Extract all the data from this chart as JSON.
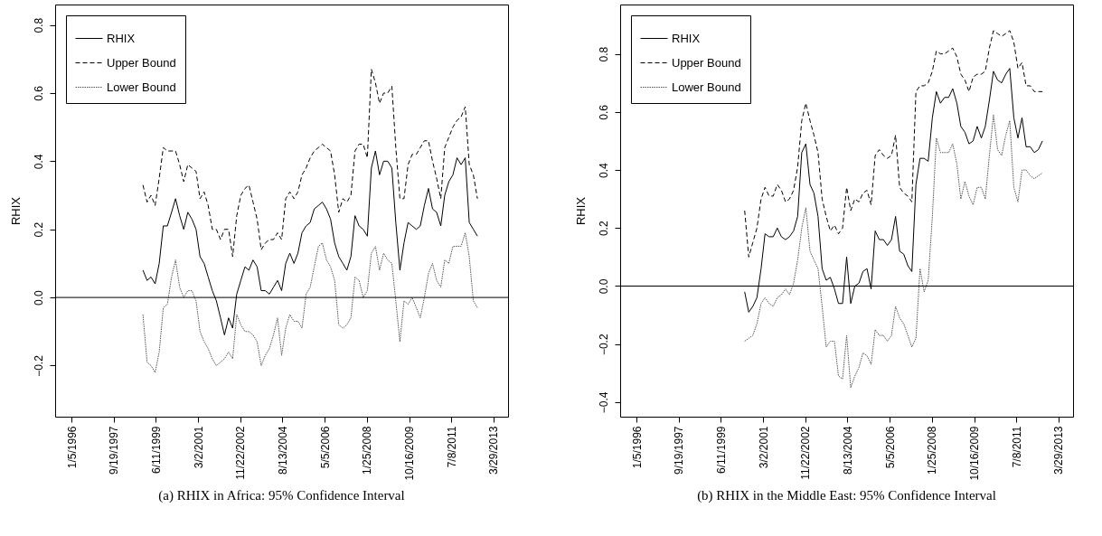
{
  "chart_data": [
    {
      "type": "line",
      "title": "(a) RHIX in Africa: 95% Confidence Interval",
      "ylabel": "RHIX",
      "legend": "top left",
      "x": [
        "1998-12",
        "1999-02",
        "1999-04",
        "1999-06",
        "1999-08",
        "1999-10",
        "1999-12",
        "2000-02",
        "2000-04",
        "2000-06",
        "2000-08",
        "2000-10",
        "2000-12",
        "2001-02",
        "2001-04",
        "2001-06",
        "2001-08",
        "2001-10",
        "2001-12",
        "2002-02",
        "2002-04",
        "2002-06",
        "2002-08",
        "2002-10",
        "2002-12",
        "2003-02",
        "2003-04",
        "2003-06",
        "2003-08",
        "2003-10",
        "2003-12",
        "2004-02",
        "2004-04",
        "2004-06",
        "2004-08",
        "2004-10",
        "2004-12",
        "2005-02",
        "2005-04",
        "2005-06",
        "2005-08",
        "2005-10",
        "2005-12",
        "2006-02",
        "2006-04",
        "2006-06",
        "2006-08",
        "2006-10",
        "2006-12",
        "2007-02",
        "2007-04",
        "2007-06",
        "2007-08",
        "2007-10",
        "2007-12",
        "2008-02",
        "2008-04",
        "2008-06",
        "2008-08",
        "2008-10",
        "2008-12",
        "2009-02",
        "2009-04",
        "2009-06",
        "2009-08",
        "2009-10",
        "2009-12",
        "2010-02",
        "2010-04",
        "2010-06",
        "2010-08",
        "2010-10",
        "2010-12",
        "2011-02",
        "2011-04",
        "2011-06",
        "2011-08",
        "2011-10",
        "2011-12",
        "2012-02",
        "2012-04",
        "2012-06",
        "2012-08"
      ],
      "series": [
        {
          "name": "RHIX",
          "color": "#000000",
          "line_style": "solid",
          "values": [
            0.08,
            0.05,
            0.06,
            0.04,
            0.1,
            0.21,
            0.21,
            0.25,
            0.29,
            0.24,
            0.2,
            0.25,
            0.23,
            0.2,
            0.12,
            0.1,
            0.06,
            0.02,
            -0.01,
            -0.06,
            -0.11,
            -0.06,
            -0.09,
            0.01,
            0.05,
            0.09,
            0.08,
            0.11,
            0.09,
            0.02,
            0.02,
            0.01,
            0.03,
            0.05,
            0.02,
            0.1,
            0.13,
            0.1,
            0.13,
            0.19,
            0.21,
            0.22,
            0.26,
            0.27,
            0.28,
            0.26,
            0.23,
            0.16,
            0.12,
            0.1,
            0.08,
            0.12,
            0.24,
            0.21,
            0.2,
            0.18,
            0.38,
            0.43,
            0.36,
            0.4,
            0.4,
            0.38,
            0.22,
            0.08,
            0.16,
            0.22,
            0.21,
            0.2,
            0.21,
            0.27,
            0.32,
            0.26,
            0.25,
            0.21,
            0.3,
            0.34,
            0.36,
            0.41,
            0.39,
            0.41,
            0.22,
            0.2,
            0.18
          ]
        },
        {
          "name": "Upper Bound",
          "color": "#000000",
          "line_style": "dashed",
          "values": [
            0.33,
            0.28,
            0.3,
            0.27,
            0.35,
            0.44,
            0.43,
            0.43,
            0.43,
            0.39,
            0.34,
            0.39,
            0.38,
            0.37,
            0.29,
            0.31,
            0.27,
            0.2,
            0.2,
            0.17,
            0.2,
            0.2,
            0.12,
            0.24,
            0.3,
            0.32,
            0.33,
            0.28,
            0.23,
            0.14,
            0.16,
            0.17,
            0.17,
            0.19,
            0.17,
            0.29,
            0.31,
            0.29,
            0.31,
            0.36,
            0.38,
            0.41,
            0.43,
            0.44,
            0.45,
            0.44,
            0.43,
            0.36,
            0.25,
            0.29,
            0.28,
            0.3,
            0.43,
            0.45,
            0.45,
            0.41,
            0.67,
            0.63,
            0.57,
            0.6,
            0.6,
            0.62,
            0.44,
            0.29,
            0.29,
            0.39,
            0.42,
            0.42,
            0.44,
            0.46,
            0.46,
            0.4,
            0.35,
            0.29,
            0.44,
            0.47,
            0.5,
            0.52,
            0.53,
            0.56,
            0.39,
            0.36,
            0.29
          ]
        },
        {
          "name": "Lower Bound",
          "color": "#555555",
          "line_style": "dotted",
          "values": [
            -0.05,
            -0.19,
            -0.2,
            -0.22,
            -0.16,
            -0.03,
            -0.02,
            0.06,
            0.11,
            0.03,
            0.0,
            0.02,
            0.02,
            -0.01,
            -0.1,
            -0.13,
            -0.15,
            -0.18,
            -0.2,
            -0.19,
            -0.18,
            -0.16,
            -0.18,
            -0.05,
            -0.08,
            -0.1,
            -0.1,
            -0.11,
            -0.13,
            -0.2,
            -0.17,
            -0.15,
            -0.11,
            -0.06,
            -0.17,
            -0.09,
            -0.05,
            -0.07,
            -0.07,
            -0.09,
            0.01,
            0.03,
            0.09,
            0.15,
            0.16,
            0.11,
            0.09,
            0.05,
            -0.08,
            -0.09,
            -0.08,
            -0.06,
            0.06,
            0.05,
            0.0,
            0.02,
            0.13,
            0.15,
            0.08,
            0.13,
            0.11,
            0.1,
            -0.01,
            -0.13,
            -0.01,
            -0.02,
            0.0,
            -0.03,
            -0.06,
            0.0,
            0.07,
            0.1,
            0.05,
            0.03,
            0.11,
            0.1,
            0.15,
            0.15,
            0.15,
            0.19,
            0.12,
            -0.01,
            -0.03
          ]
        }
      ],
      "xlim": [
        "1995-05",
        "2013-11"
      ],
      "xticks": [
        {
          "value": "1996-01-05",
          "label": "1/5/1996"
        },
        {
          "value": "1997-09-19",
          "label": "9/19/1997"
        },
        {
          "value": "1999-06-11",
          "label": "6/11/1999"
        },
        {
          "value": "2001-03-02",
          "label": "3/2/2001"
        },
        {
          "value": "2002-11-22",
          "label": "11/22/2002"
        },
        {
          "value": "2004-08-13",
          "label": "8/13/2004"
        },
        {
          "value": "2006-05-05",
          "label": "5/5/2006"
        },
        {
          "value": "2008-01-25",
          "label": "1/25/2008"
        },
        {
          "value": "2009-10-16",
          "label": "10/16/2009"
        },
        {
          "value": "2011-07-08",
          "label": "7/8/2011"
        },
        {
          "value": "2013-03-29",
          "label": "3/29/2013"
        }
      ],
      "ylim": [
        -0.35,
        0.86
      ],
      "yticks": [
        {
          "value": -0.2,
          "label": "−0.2"
        },
        {
          "value": 0,
          "label": "0.0"
        },
        {
          "value": 0.2,
          "label": "0.2"
        },
        {
          "value": 0.4,
          "label": "0.4"
        },
        {
          "value": 0.6,
          "label": "0.6"
        },
        {
          "value": 0.8,
          "label": "0.8"
        }
      ],
      "ref_lines": [
        {
          "axis": "y",
          "value": 0,
          "color": "#000000"
        }
      ]
    },
    {
      "type": "line",
      "title": "(b) RHIX in the Middle East: 95% Confidence Interval",
      "ylabel": "RHIX",
      "legend": "top left",
      "x": [
        "2000-06",
        "2000-08",
        "2000-10",
        "2000-12",
        "2001-02",
        "2001-04",
        "2001-06",
        "2001-08",
        "2001-10",
        "2001-12",
        "2002-02",
        "2002-04",
        "2002-06",
        "2002-08",
        "2002-10",
        "2002-12",
        "2003-02",
        "2003-04",
        "2003-06",
        "2003-08",
        "2003-10",
        "2003-12",
        "2004-02",
        "2004-04",
        "2004-06",
        "2004-08",
        "2004-10",
        "2004-12",
        "2005-02",
        "2005-04",
        "2005-06",
        "2005-08",
        "2005-10",
        "2005-12",
        "2006-02",
        "2006-04",
        "2006-06",
        "2006-08",
        "2006-10",
        "2006-12",
        "2007-02",
        "2007-04",
        "2007-06",
        "2007-08",
        "2007-10",
        "2007-12",
        "2008-02",
        "2008-04",
        "2008-06",
        "2008-08",
        "2008-10",
        "2008-12",
        "2009-02",
        "2009-04",
        "2009-06",
        "2009-08",
        "2009-10",
        "2009-12",
        "2010-02",
        "2010-04",
        "2010-06",
        "2010-08",
        "2010-10",
        "2010-12",
        "2011-02",
        "2011-04",
        "2011-06",
        "2011-08",
        "2011-10",
        "2011-12",
        "2012-02",
        "2012-04",
        "2012-06",
        "2012-08"
      ],
      "series": [
        {
          "name": "RHIX",
          "color": "#000000",
          "line_style": "solid",
          "values": [
            -0.02,
            -0.09,
            -0.07,
            -0.04,
            0.06,
            0.18,
            0.17,
            0.17,
            0.2,
            0.17,
            0.16,
            0.17,
            0.19,
            0.24,
            0.46,
            0.49,
            0.35,
            0.32,
            0.24,
            0.06,
            0.02,
            0.03,
            -0.01,
            -0.06,
            -0.06,
            0.1,
            -0.06,
            0.0,
            0.01,
            0.05,
            0.06,
            -0.01,
            0.19,
            0.16,
            0.16,
            0.14,
            0.16,
            0.24,
            0.12,
            0.11,
            0.07,
            0.05,
            0.35,
            0.44,
            0.44,
            0.43,
            0.58,
            0.67,
            0.63,
            0.65,
            0.65,
            0.68,
            0.63,
            0.55,
            0.53,
            0.49,
            0.5,
            0.55,
            0.51,
            0.55,
            0.64,
            0.74,
            0.71,
            0.7,
            0.73,
            0.75,
            0.58,
            0.51,
            0.58,
            0.48,
            0.48,
            0.46,
            0.47,
            0.5
          ]
        },
        {
          "name": "Upper Bound",
          "color": "#000000",
          "line_style": "dashed",
          "values": [
            0.26,
            0.1,
            0.15,
            0.2,
            0.3,
            0.34,
            0.31,
            0.31,
            0.35,
            0.33,
            0.29,
            0.3,
            0.33,
            0.41,
            0.57,
            0.63,
            0.57,
            0.52,
            0.46,
            0.3,
            0.24,
            0.19,
            0.21,
            0.18,
            0.2,
            0.34,
            0.26,
            0.3,
            0.29,
            0.32,
            0.33,
            0.28,
            0.45,
            0.47,
            0.45,
            0.44,
            0.45,
            0.52,
            0.34,
            0.32,
            0.31,
            0.29,
            0.67,
            0.69,
            0.69,
            0.7,
            0.74,
            0.81,
            0.8,
            0.8,
            0.81,
            0.82,
            0.79,
            0.73,
            0.71,
            0.67,
            0.72,
            0.73,
            0.73,
            0.74,
            0.82,
            0.88,
            0.87,
            0.86,
            0.87,
            0.88,
            0.84,
            0.75,
            0.77,
            0.69,
            0.69,
            0.67,
            0.67,
            0.67
          ]
        },
        {
          "name": "Lower Bound",
          "color": "#555555",
          "line_style": "dotted",
          "values": [
            -0.19,
            -0.18,
            -0.17,
            -0.13,
            -0.06,
            -0.04,
            -0.06,
            -0.07,
            -0.04,
            -0.03,
            -0.01,
            -0.03,
            0.01,
            0.09,
            0.2,
            0.27,
            0.12,
            0.09,
            0.06,
            -0.07,
            -0.21,
            -0.19,
            -0.19,
            -0.31,
            -0.32,
            -0.17,
            -0.35,
            -0.31,
            -0.28,
            -0.23,
            -0.24,
            -0.27,
            -0.15,
            -0.17,
            -0.17,
            -0.19,
            -0.17,
            -0.07,
            -0.11,
            -0.13,
            -0.17,
            -0.21,
            -0.18,
            0.06,
            -0.02,
            0.02,
            0.24,
            0.51,
            0.46,
            0.46,
            0.46,
            0.49,
            0.42,
            0.3,
            0.36,
            0.31,
            0.28,
            0.34,
            0.34,
            0.3,
            0.45,
            0.59,
            0.47,
            0.45,
            0.52,
            0.57,
            0.34,
            0.29,
            0.4,
            0.4,
            0.38,
            0.37,
            0.38,
            0.39
          ]
        }
      ],
      "xlim": [
        "1995-05",
        "2013-11"
      ],
      "xticks": [
        {
          "value": "1996-01-05",
          "label": "1/5/1996"
        },
        {
          "value": "1997-09-19",
          "label": "9/19/1997"
        },
        {
          "value": "1999-06-11",
          "label": "6/11/1999"
        },
        {
          "value": "2001-03-02",
          "label": "3/2/2001"
        },
        {
          "value": "2002-11-22",
          "label": "11/22/2002"
        },
        {
          "value": "2004-08-13",
          "label": "8/13/2004"
        },
        {
          "value": "2006-05-05",
          "label": "5/5/2006"
        },
        {
          "value": "2008-01-25",
          "label": "1/25/2008"
        },
        {
          "value": "2009-10-16",
          "label": "10/16/2009"
        },
        {
          "value": "2011-07-08",
          "label": "7/8/2011"
        },
        {
          "value": "2013-03-29",
          "label": "3/29/2013"
        }
      ],
      "ylim": [
        -0.45,
        0.97
      ],
      "yticks": [
        {
          "value": -0.4,
          "label": "−0.4"
        },
        {
          "value": -0.2,
          "label": "−0.2"
        },
        {
          "value": 0,
          "label": "0.0"
        },
        {
          "value": 0.2,
          "label": "0.2"
        },
        {
          "value": 0.4,
          "label": "0.4"
        },
        {
          "value": 0.6,
          "label": "0.6"
        },
        {
          "value": 0.8,
          "label": "0.8"
        }
      ],
      "ref_lines": [
        {
          "axis": "y",
          "value": 0,
          "color": "#000000"
        }
      ]
    }
  ]
}
